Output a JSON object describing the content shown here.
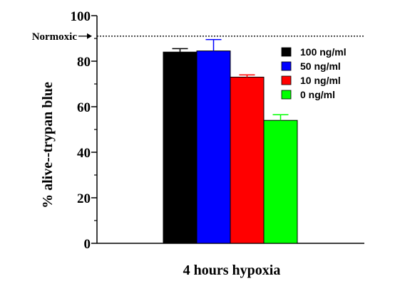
{
  "chart_data": {
    "type": "bar",
    "xlabel": "4 hours hypoxia",
    "ylabel": "% alive--trypan blue",
    "ylim": [
      0,
      100
    ],
    "yticks": [
      0,
      20,
      40,
      60,
      80,
      100
    ],
    "grid": false,
    "legend_position": "top-right",
    "reference_line": {
      "label": "Normoxic",
      "value": 91,
      "style": "dotted"
    },
    "series": [
      {
        "name": "100 ng/ml",
        "value": 84,
        "error": 1.5,
        "color": "#000000"
      },
      {
        "name": "50 ng/ml",
        "value": 84.5,
        "error": 5,
        "color": "#0000ff"
      },
      {
        "name": "10 ng/ml",
        "value": 73,
        "error": 1,
        "color": "#ff0000"
      },
      {
        "name": "0 ng/ml",
        "value": 54,
        "error": 2.5,
        "color": "#00ff00"
      }
    ]
  }
}
